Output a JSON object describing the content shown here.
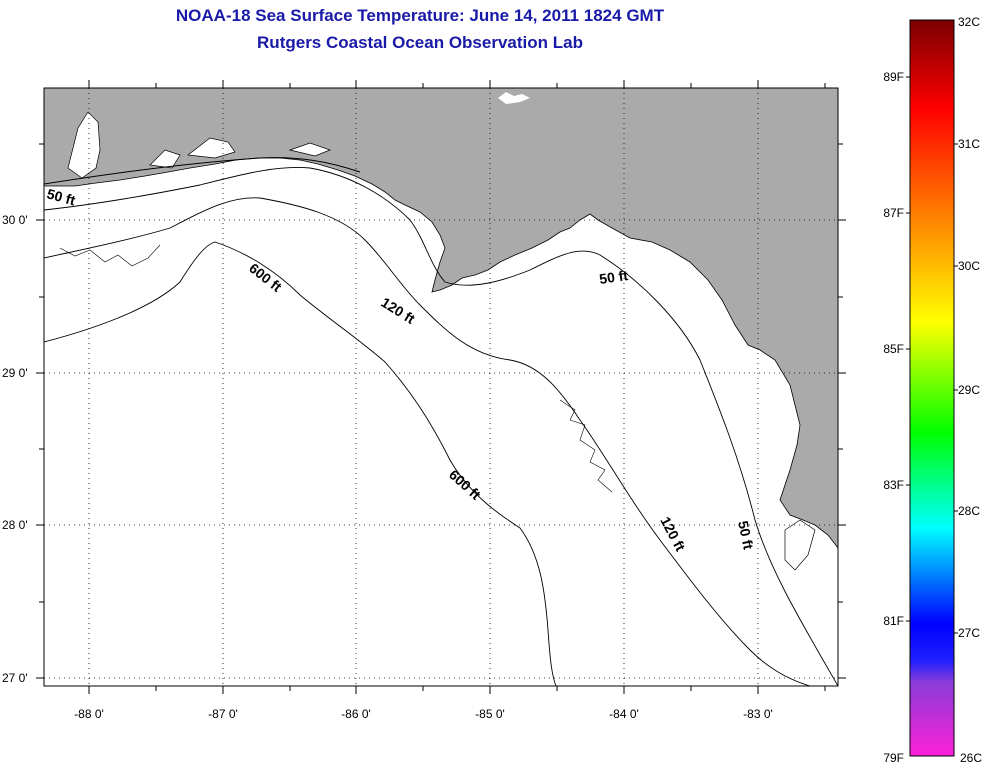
{
  "header": {
    "title": "NOAA-18 Sea Surface Temperature:  June 14, 2011 1824 GMT",
    "subtitle": "Rutgers Coastal Ocean Observation Lab"
  },
  "map": {
    "lon_labels": [
      "-88 0'",
      "-87 0'",
      "-86 0'",
      "-85 0'",
      "-84 0'",
      "-83 0'"
    ],
    "lat_labels": [
      "30 0'",
      "29 0'",
      "28 0'",
      "27 0'"
    ],
    "land_color": "#aaaaaa",
    "water_color": "#ffffff",
    "contours": [
      {
        "label": "50 ft"
      },
      {
        "label": "50 ft"
      },
      {
        "label": "50 ft"
      },
      {
        "label": "120 ft"
      },
      {
        "label": "120 ft"
      },
      {
        "label": "600 ft"
      },
      {
        "label": "600 ft"
      }
    ]
  },
  "colorbar": {
    "celsius": [
      "32C",
      "31C",
      "30C",
      "29C",
      "28C",
      "27C",
      "26C"
    ],
    "fahrenheit": [
      "89F",
      "87F",
      "85F",
      "83F",
      "81F",
      "79F"
    ],
    "stops": [
      "#7a0000",
      "#ff0000",
      "#ff8c00",
      "#ffff00",
      "#00ff00",
      "#00ffff",
      "#0000ff",
      "#ff00ff"
    ]
  }
}
